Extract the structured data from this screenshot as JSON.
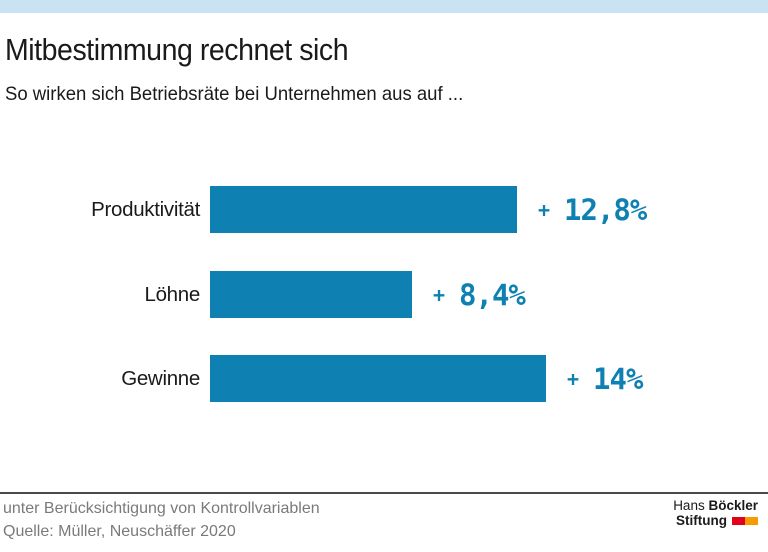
{
  "page": {
    "background": "#ffffff",
    "topbar_color": "#c9e3f3"
  },
  "header": {
    "title": "Mitbestimmung rechnet sich",
    "subtitle": "So wirken sich Betriebsräte bei Unternehmen aus auf ..."
  },
  "chart_data": {
    "type": "bar",
    "orientation": "horizontal",
    "title": "Mitbestimmung rechnet sich",
    "subtitle": "So wirken sich Betriebsräte bei Unternehmen aus auf ...",
    "categories": [
      "Produktivität",
      "Löhne",
      "Gewinne"
    ],
    "values": [
      12.8,
      8.4,
      14
    ],
    "plus_sign": "+",
    "value_displays": [
      "12,8%",
      "8,4%",
      "14%"
    ],
    "bar_color": "#0e81b2",
    "value_color": "#0e81b2",
    "xlim": [
      0,
      14.5
    ],
    "grid": "off",
    "legend": "none",
    "xlabel": "",
    "ylabel": ""
  },
  "footer": {
    "note": "unter Berücksichtigung von Kontrollvariablen",
    "source": "Quelle: Müller, Neuschäffer 2020",
    "logo": {
      "name_regular": "Hans",
      "name_bold": "Böckler",
      "line2_bold": "Stiftung",
      "red_block_color": "#e2001a",
      "orange_block_color": "#f59c00"
    }
  }
}
